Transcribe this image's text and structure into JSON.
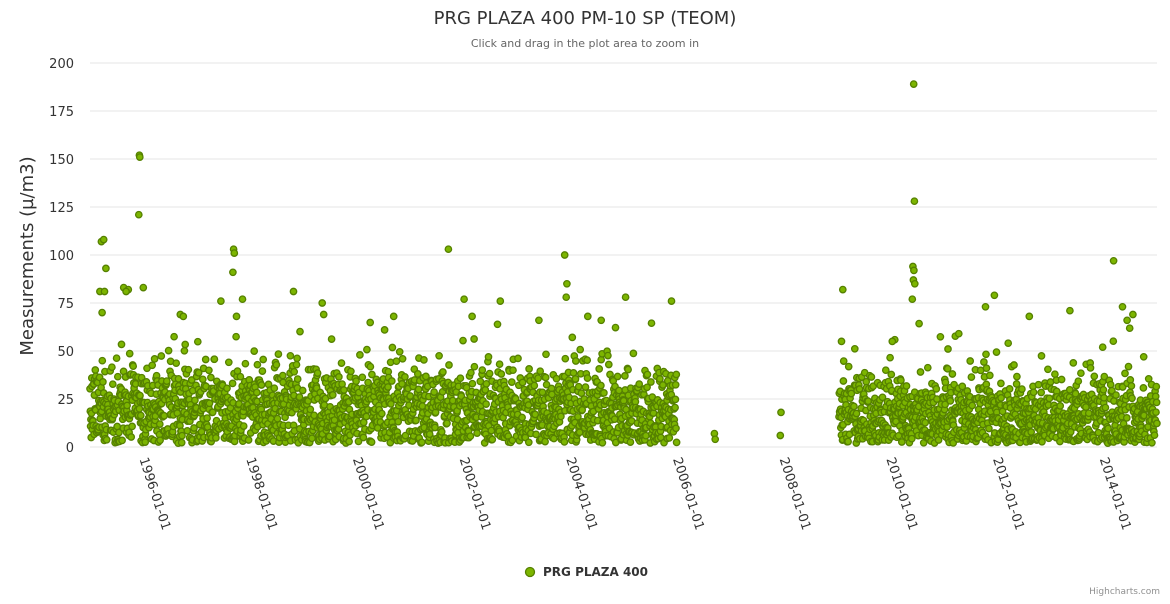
{
  "chart_data": {
    "type": "scatter",
    "title": "PRG PLAZA 400 PM-10 SP (TEOM)",
    "subtitle": "Click and drag in the plot area to zoom in",
    "ylabel": "Measurements (µ/m3)",
    "xlabel": "",
    "ylim": [
      0,
      200
    ],
    "yticks": [
      0,
      25,
      50,
      75,
      100,
      125,
      150,
      175,
      200
    ],
    "xlim": [
      "1995-01-01",
      "2015-01-01"
    ],
    "xticks": [
      "1996-01-01",
      "1998-01-01",
      "2000-01-01",
      "2002-01-01",
      "2004-01-01",
      "2006-01-01",
      "2008-01-01",
      "2010-01-01",
      "2012-01-01",
      "2014-01-01"
    ],
    "grid": true,
    "legend_position": "bottom-center",
    "series": [
      {
        "name": "PRG PLAZA 400",
        "color": "#7cb500",
        "outline": "#558000",
        "notable_points": [
          [
            "1995-03-20",
            107
          ],
          [
            "1995-04-05",
            108
          ],
          [
            "1995-04-20",
            93
          ],
          [
            "1995-03-10",
            81
          ],
          [
            "1995-04-10",
            81
          ],
          [
            "1995-03-25",
            70
          ],
          [
            "1995-08-20",
            83
          ],
          [
            "1995-09-20",
            82
          ],
          [
            "1995-09-05",
            81
          ],
          [
            "1995-12-05",
            152
          ],
          [
            "1995-12-08",
            151
          ],
          [
            "1995-12-01",
            121
          ],
          [
            "1996-01-01",
            83
          ],
          [
            "1996-09-10",
            69
          ],
          [
            "1996-10-01",
            68
          ],
          [
            "1997-06-15",
            76
          ],
          [
            "1997-09-10",
            103
          ],
          [
            "1997-09-15",
            101
          ],
          [
            "1997-09-05",
            91
          ],
          [
            "1997-11-10",
            77
          ],
          [
            "1997-09-30",
            68
          ],
          [
            "1998-10-25",
            81
          ],
          [
            "1999-05-10",
            75
          ],
          [
            "1999-05-20",
            69
          ],
          [
            "2000-09-10",
            68
          ],
          [
            "2000-07-10",
            61
          ],
          [
            "2001-09-20",
            103
          ],
          [
            "2002-01-05",
            77
          ],
          [
            "2002-03-01",
            68
          ],
          [
            "2002-09-10",
            76
          ],
          [
            "2003-06-01",
            66
          ],
          [
            "2003-11-25",
            100
          ],
          [
            "2003-12-10",
            85
          ],
          [
            "2003-12-05",
            78
          ],
          [
            "2004-05-01",
            68
          ],
          [
            "2004-08-01",
            66
          ],
          [
            "2005-01-15",
            78
          ],
          [
            "2005-11-25",
            76
          ],
          [
            "2006-09-15",
            7
          ],
          [
            "2006-09-20",
            4
          ],
          [
            "2007-12-15",
            18
          ],
          [
            "2007-12-10",
            6
          ],
          [
            "2009-02-10",
            82
          ],
          [
            "2009-02-01",
            55
          ],
          [
            "2010-01-15",
            55
          ],
          [
            "2010-06-10",
            189
          ],
          [
            "2010-06-15",
            128
          ],
          [
            "2010-06-05",
            94
          ],
          [
            "2010-06-12",
            92
          ],
          [
            "2010-06-08",
            87
          ],
          [
            "2010-06-18",
            85
          ],
          [
            "2010-06-01",
            77
          ],
          [
            "2011-04-15",
            59
          ],
          [
            "2011-10-15",
            73
          ],
          [
            "2011-12-15",
            79
          ],
          [
            "2012-08-10",
            68
          ],
          [
            "2013-05-15",
            71
          ],
          [
            "2013-12-25",
            52
          ],
          [
            "2014-03-10",
            97
          ],
          [
            "2014-05-10",
            73
          ],
          [
            "2014-07-20",
            69
          ],
          [
            "2014-06-10",
            66
          ]
        ],
        "daily_bulk": [
          {
            "from": "1995-01-01",
            "to": "2005-12-31",
            "center": 19,
            "spread": 14,
            "every_days": 2
          },
          {
            "from": "2009-01-15",
            "to": "2014-12-31",
            "center": 16,
            "spread": 12,
            "every_days": 2
          }
        ]
      }
    ],
    "credits": "Highcharts.com"
  }
}
